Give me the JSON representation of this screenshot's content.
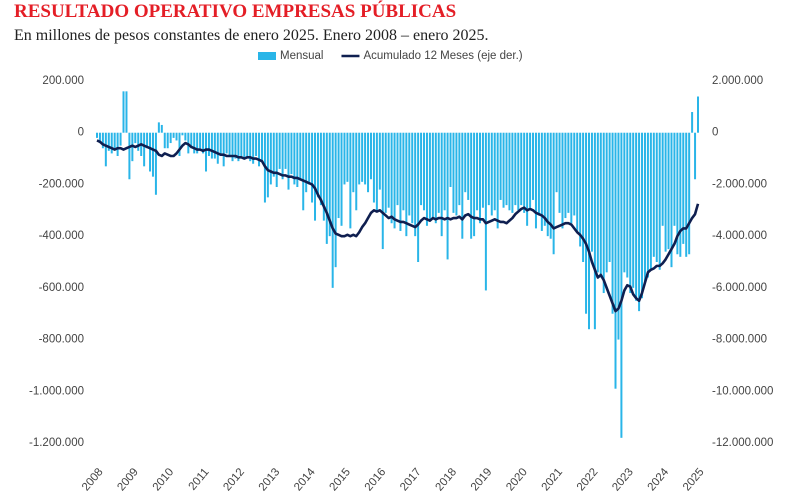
{
  "chart_data": {
    "type": "bar_line",
    "title": "RESULTADO OPERATIVO EMPRESAS PÚBLICAS",
    "subtitle": "En millones de pesos constantes de enero 2025. Enero 2008 – enero 2025.",
    "categories": [
      "2008",
      null,
      null,
      null,
      null,
      null,
      null,
      null,
      null,
      null,
      null,
      null,
      "2009",
      null,
      null,
      null,
      null,
      null,
      null,
      null,
      null,
      null,
      null,
      null,
      "2010",
      null,
      null,
      null,
      null,
      null,
      null,
      null,
      null,
      null,
      null,
      null,
      "2011",
      null,
      null,
      null,
      null,
      null,
      null,
      null,
      null,
      null,
      null,
      null,
      "2012",
      null,
      null,
      null,
      null,
      null,
      null,
      null,
      null,
      null,
      null,
      null,
      "2013",
      null,
      null,
      null,
      null,
      null,
      null,
      null,
      null,
      null,
      null,
      null,
      "2014",
      null,
      null,
      null,
      null,
      null,
      null,
      null,
      null,
      null,
      null,
      null,
      "2015",
      null,
      null,
      null,
      null,
      null,
      null,
      null,
      null,
      null,
      null,
      null,
      "2016",
      null,
      null,
      null,
      null,
      null,
      null,
      null,
      null,
      null,
      null,
      null,
      "2017",
      null,
      null,
      null,
      null,
      null,
      null,
      null,
      null,
      null,
      null,
      null,
      "2018",
      null,
      null,
      null,
      null,
      null,
      null,
      null,
      null,
      null,
      null,
      null,
      "2019",
      null,
      null,
      null,
      null,
      null,
      null,
      null,
      null,
      null,
      null,
      null,
      "2020",
      null,
      null,
      null,
      null,
      null,
      null,
      null,
      null,
      null,
      null,
      null,
      "2021",
      null,
      null,
      null,
      null,
      null,
      null,
      null,
      null,
      null,
      null,
      null,
      "2022",
      null,
      null,
      null,
      null,
      null,
      null,
      null,
      null,
      null,
      null,
      null,
      "2023",
      null,
      null,
      null,
      null,
      null,
      null,
      null,
      null,
      null,
      null,
      null,
      "2024",
      null,
      null,
      null,
      null,
      null,
      null,
      null,
      null,
      null,
      null,
      null,
      "2025"
    ],
    "series": [
      {
        "name": "Mensual",
        "color": "#29b5e8",
        "type": "bar",
        "values": [
          -20000,
          -40000,
          -60000,
          -130000,
          -70000,
          -80000,
          -60000,
          -90000,
          -50000,
          160000,
          160000,
          -180000,
          -110000,
          -40000,
          -70000,
          -90000,
          -130000,
          -60000,
          -150000,
          -170000,
          -240000,
          40000,
          30000,
          -60000,
          -60000,
          -40000,
          -20000,
          -30000,
          -90000,
          -10000,
          -30000,
          -80000,
          -60000,
          -80000,
          -80000,
          -60000,
          -80000,
          -150000,
          -90000,
          -100000,
          -100000,
          -120000,
          -90000,
          -130000,
          -80000,
          -90000,
          -110000,
          -100000,
          -110000,
          -90000,
          -100000,
          -100000,
          -110000,
          -120000,
          -90000,
          -130000,
          -110000,
          -270000,
          -250000,
          -200000,
          -170000,
          -210000,
          -140000,
          -180000,
          -140000,
          -220000,
          -160000,
          -200000,
          -210000,
          -180000,
          -300000,
          -230000,
          -200000,
          -270000,
          -340000,
          -250000,
          -280000,
          -340000,
          -430000,
          -400000,
          -600000,
          -520000,
          -330000,
          -360000,
          -200000,
          -190000,
          -370000,
          -230000,
          -300000,
          -200000,
          -190000,
          -200000,
          -230000,
          -180000,
          -270000,
          -300000,
          -220000,
          -450000,
          -310000,
          -290000,
          -350000,
          -370000,
          -280000,
          -380000,
          -300000,
          -400000,
          -320000,
          -350000,
          -400000,
          -500000,
          -280000,
          -300000,
          -360000,
          -340000,
          -330000,
          -350000,
          -310000,
          -400000,
          -300000,
          -490000,
          -210000,
          -310000,
          -320000,
          -280000,
          -410000,
          -230000,
          -260000,
          -410000,
          -400000,
          -300000,
          -350000,
          -290000,
          -610000,
          -280000,
          -320000,
          -300000,
          -370000,
          -260000,
          -290000,
          -280000,
          -300000,
          -310000,
          -280000,
          -300000,
          -280000,
          -310000,
          -360000,
          -290000,
          -260000,
          -370000,
          -320000,
          -380000,
          -360000,
          -400000,
          -410000,
          -470000,
          -230000,
          -310000,
          -370000,
          -330000,
          -310000,
          -350000,
          -320000,
          -380000,
          -440000,
          -500000,
          -700000,
          -760000,
          -460000,
          -760000,
          -540000,
          -560000,
          -620000,
          -540000,
          -500000,
          -700000,
          -990000,
          -800000,
          -1180000,
          -540000,
          -560000,
          -620000,
          -600000,
          -650000,
          -690000,
          -640000,
          -580000,
          -560000,
          -530000,
          -480000,
          -500000,
          -530000,
          -360000,
          -460000,
          -450000,
          -520000,
          -360000,
          -470000,
          -480000,
          -430000,
          -480000,
          -470000,
          80000,
          -180000,
          140000
        ]
      },
      {
        "name": "Acumulado 12 Meses (eje der.)",
        "color": "#0f1f50",
        "type": "line",
        "axis": "y2",
        "values": [
          -300000,
          -350000,
          -450000,
          -500000,
          -550000,
          -600000,
          -650000,
          -600000,
          -600000,
          -650000,
          -600000,
          -550000,
          -500000,
          -550000,
          -500000,
          -450000,
          -500000,
          -550000,
          -600000,
          -650000,
          -700000,
          -850000,
          -900000,
          -800000,
          -850000,
          -900000,
          -900000,
          -800000,
          -650000,
          -500000,
          -400000,
          -450000,
          -550000,
          -600000,
          -650000,
          -650000,
          -700000,
          -650000,
          -650000,
          -700000,
          -750000,
          -800000,
          -850000,
          -850000,
          -900000,
          -900000,
          -900000,
          -900000,
          -950000,
          -950000,
          -1000000,
          -950000,
          -950000,
          -1000000,
          -1000000,
          -1050000,
          -1100000,
          -1300000,
          -1450000,
          -1500000,
          -1550000,
          -1550000,
          -1600000,
          -1650000,
          -1650000,
          -1700000,
          -1700000,
          -1750000,
          -1750000,
          -1800000,
          -1850000,
          -1900000,
          -1950000,
          -2000000,
          -2150000,
          -2400000,
          -2600000,
          -2850000,
          -3100000,
          -3400000,
          -3700000,
          -3900000,
          -3950000,
          -4000000,
          -4000000,
          -3950000,
          -4000000,
          -3950000,
          -4000000,
          -3850000,
          -3650000,
          -3500000,
          -3300000,
          -3100000,
          -3000000,
          -3050000,
          -3000000,
          -3100000,
          -3200000,
          -3300000,
          -3250000,
          -3350000,
          -3400000,
          -3450000,
          -3450000,
          -3500000,
          -3550000,
          -3600000,
          -3650000,
          -3550000,
          -3400000,
          -3300000,
          -3350000,
          -3400000,
          -3300000,
          -3350000,
          -3300000,
          -3300000,
          -3350000,
          -3300000,
          -3350000,
          -3300000,
          -3300000,
          -3250000,
          -3350000,
          -3200000,
          -3150000,
          -3250000,
          -3300000,
          -3300000,
          -3350000,
          -3350000,
          -3500000,
          -3450000,
          -3400000,
          -3350000,
          -3400000,
          -3450000,
          -3450000,
          -3500000,
          -3400000,
          -3300000,
          -3150000,
          -3050000,
          -2950000,
          -2900000,
          -3000000,
          -2950000,
          -3000000,
          -3100000,
          -3150000,
          -3200000,
          -3300000,
          -3450000,
          -3550000,
          -3700000,
          -3650000,
          -3600000,
          -3550000,
          -3500000,
          -3500000,
          -3550000,
          -3700000,
          -3850000,
          -3950000,
          -4100000,
          -4300000,
          -4600000,
          -5000000,
          -5300000,
          -5600000,
          -5500000,
          -5700000,
          -6000000,
          -6300000,
          -6600000,
          -6900000,
          -6800000,
          -6500000,
          -6100000,
          -5900000,
          -5950000,
          -6250000,
          -6400000,
          -6500000,
          -6200000,
          -5800000,
          -5400000,
          -5300000,
          -5250000,
          -5150000,
          -5150000,
          -5050000,
          -4900000,
          -4700000,
          -4500000,
          -4300000,
          -4000000,
          -3800000,
          -3700000,
          -3700000,
          -3500000,
          -3300000,
          -3150000,
          -2750000
        ]
      }
    ],
    "ylim": [
      -1200000,
      200000
    ],
    "yticks": [
      {
        "value": 200000,
        "label": "200.000"
      },
      0,
      {
        "value": -200000,
        "label": "-200.000"
      },
      {
        "value": -400000,
        "label": "-400.000"
      },
      {
        "value": -600000,
        "label": "-600.000"
      },
      {
        "value": -800000,
        "label": "-800.000"
      },
      {
        "value": -1000000,
        "label": "-1.000.000"
      },
      {
        "value": -1200000,
        "label": "-1.200.000"
      }
    ],
    "y2lim": [
      -12000000,
      2000000
    ],
    "y2ticks": [
      {
        "value": 2000000,
        "label": "2.000.000"
      },
      0,
      {
        "value": -2000000,
        "label": "-2.000.000"
      },
      {
        "value": -4000000,
        "label": "-4.000.000"
      },
      {
        "value": -6000000,
        "label": "-6.000.000"
      },
      {
        "value": -8000000,
        "label": "-8.000.000"
      },
      {
        "value": -10000000,
        "label": "-10.000.000"
      },
      {
        "value": -12000000,
        "label": "-12.000.000"
      }
    ],
    "grid": false,
    "legend": "top"
  }
}
